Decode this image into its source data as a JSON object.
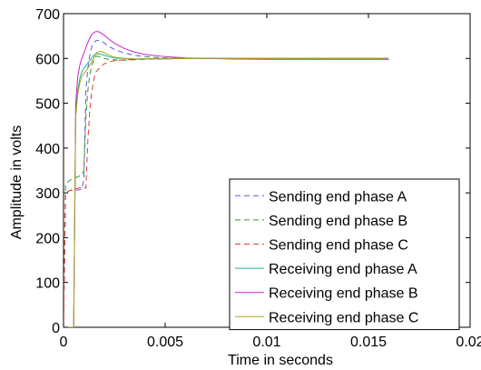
{
  "chart_data": {
    "type": "line",
    "title": "",
    "xlabel": "Time in seconds",
    "ylabel": "Amplitude in volts",
    "xlim": [
      0,
      0.02
    ],
    "ylim": [
      0,
      700
    ],
    "xticks": [
      0,
      0.005,
      0.01,
      0.015,
      0.02
    ],
    "xtick_labels": [
      "0",
      "0.005",
      "0.01",
      "0.015",
      "0.02"
    ],
    "yticks": [
      0,
      100,
      200,
      300,
      400,
      500,
      600,
      700
    ],
    "ytick_labels": [
      "0",
      "100",
      "200",
      "300",
      "400",
      "500",
      "600",
      "700"
    ],
    "grid": false,
    "legend_position": "bottom-right",
    "series": [
      {
        "name": "Sending end phase A",
        "color": "#5b5bd6",
        "dash": "dashed",
        "x": [
          0,
          0.0001,
          0.0003,
          0.0005,
          0.0007,
          0.0009,
          0.001,
          0.0011,
          0.0012,
          0.0013,
          0.0014,
          0.0015,
          0.0016,
          0.0018,
          0.002,
          0.0022,
          0.0025,
          0.003,
          0.0035,
          0.004,
          0.005,
          0.006,
          0.008,
          0.01,
          0.012,
          0.014,
          0.016
        ],
        "y": [
          0,
          300,
          305,
          307,
          306,
          308,
          330,
          530,
          580,
          610,
          628,
          636,
          640,
          640,
          635,
          628,
          620,
          612,
          607,
          604,
          601,
          600,
          600,
          600,
          600,
          600,
          600
        ]
      },
      {
        "name": "Sending end phase B",
        "color": "#2e9a2e",
        "dash": "dashed",
        "x": [
          0,
          0.0001,
          0.0003,
          0.0005,
          0.0007,
          0.0009,
          0.001,
          0.0011,
          0.0012,
          0.0013,
          0.0014,
          0.0015,
          0.0016,
          0.0018,
          0.002,
          0.0022,
          0.0025,
          0.003,
          0.0035,
          0.004,
          0.005,
          0.006,
          0.008,
          0.01,
          0.012,
          0.014,
          0.016
        ],
        "y": [
          0,
          320,
          328,
          332,
          336,
          340,
          350,
          470,
          530,
          565,
          585,
          598,
          605,
          604,
          600,
          598,
          597,
          596,
          597,
          598,
          599,
          600,
          600,
          600,
          600,
          600,
          600
        ]
      },
      {
        "name": "Sending end phase C",
        "color": "#e03a3a",
        "dash": "dashed",
        "x": [
          0,
          0.0001,
          0.0003,
          0.0005,
          0.0007,
          0.0009,
          0.001,
          0.0011,
          0.0012,
          0.0013,
          0.0014,
          0.0015,
          0.0016,
          0.0018,
          0.002,
          0.0022,
          0.0025,
          0.003,
          0.0035,
          0.004,
          0.005,
          0.006,
          0.008,
          0.01,
          0.012,
          0.014,
          0.016
        ],
        "y": [
          0,
          300,
          305,
          308,
          310,
          312,
          312,
          310,
          420,
          490,
          530,
          555,
          570,
          580,
          588,
          592,
          595,
          597,
          598,
          599,
          599,
          600,
          600,
          600,
          600,
          600,
          600
        ]
      },
      {
        "name": "Receiving end phase A",
        "color": "#1fb2a0",
        "dash": "solid",
        "x": [
          0,
          0.0001,
          0.0003,
          0.0005,
          0.0006,
          0.0007,
          0.0008,
          0.0009,
          0.001,
          0.0011,
          0.0012,
          0.0013,
          0.0014,
          0.0015,
          0.0016,
          0.0018,
          0.002,
          0.0022,
          0.0025,
          0.003,
          0.0035,
          0.004,
          0.005,
          0.006,
          0.008,
          0.01,
          0.012,
          0.014,
          0.016
        ],
        "y": [
          0,
          0,
          0,
          0,
          480,
          530,
          555,
          570,
          578,
          584,
          590,
          596,
          602,
          607,
          610,
          610,
          607,
          604,
          601,
          600,
          599,
          599,
          600,
          600,
          600,
          600,
          600,
          600,
          600
        ]
      },
      {
        "name": "Receiving end phase B",
        "color": "#cc22cc",
        "dash": "solid",
        "x": [
          0,
          0.0001,
          0.0003,
          0.0005,
          0.0006,
          0.0007,
          0.0008,
          0.0009,
          0.001,
          0.0011,
          0.0012,
          0.0013,
          0.0014,
          0.0015,
          0.0016,
          0.0017,
          0.0018,
          0.002,
          0.0022,
          0.0025,
          0.003,
          0.0035,
          0.004,
          0.005,
          0.006,
          0.008,
          0.01,
          0.012,
          0.014,
          0.016
        ],
        "y": [
          0,
          0,
          0,
          0,
          500,
          560,
          585,
          600,
          612,
          624,
          636,
          646,
          654,
          658,
          660,
          660,
          658,
          652,
          644,
          634,
          622,
          614,
          609,
          604,
          601,
          599,
          598,
          598,
          598,
          598
        ]
      },
      {
        "name": "Receiving end phase C",
        "color": "#a8a81a",
        "dash": "solid",
        "x": [
          0,
          0.0001,
          0.0003,
          0.0005,
          0.0006,
          0.0007,
          0.0008,
          0.0009,
          0.001,
          0.0011,
          0.0012,
          0.0013,
          0.0014,
          0.0015,
          0.0016,
          0.0018,
          0.002,
          0.0022,
          0.0025,
          0.003,
          0.0035,
          0.004,
          0.005,
          0.006,
          0.008,
          0.01,
          0.012,
          0.014,
          0.016
        ],
        "y": [
          0,
          0,
          0,
          0,
          470,
          520,
          545,
          560,
          566,
          572,
          578,
          586,
          594,
          602,
          612,
          616,
          613,
          608,
          603,
          600,
          599,
          599,
          599,
          600,
          600,
          600,
          600,
          600,
          600
        ]
      }
    ]
  }
}
